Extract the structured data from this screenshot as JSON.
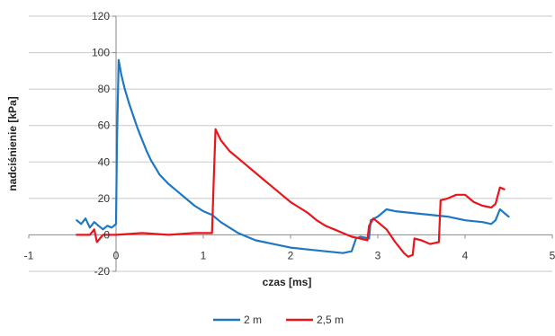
{
  "chart_data": {
    "type": "line",
    "title": "",
    "xlabel": "czas [ms]",
    "ylabel": "nadciśnienie [kPa]",
    "xlim": [
      -1,
      5
    ],
    "ylim": [
      -20,
      120
    ],
    "x_ticks": [
      -1,
      0,
      1,
      2,
      3,
      4,
      5
    ],
    "y_ticks": [
      -20,
      0,
      20,
      40,
      60,
      80,
      100,
      120
    ],
    "x_tick_labels": [
      "-1",
      "0",
      "1",
      "2",
      "3",
      "4",
      "5"
    ],
    "y_tick_labels": [
      "-20",
      "0",
      "20",
      "40",
      "60",
      "80",
      "100",
      "120"
    ],
    "grid": true,
    "legend_position": "bottom",
    "series": [
      {
        "name": "2 m",
        "color": "#1f77c4",
        "points": [
          [
            -0.45,
            8
          ],
          [
            -0.4,
            6
          ],
          [
            -0.35,
            9
          ],
          [
            -0.3,
            4
          ],
          [
            -0.25,
            7
          ],
          [
            -0.2,
            5
          ],
          [
            -0.15,
            3
          ],
          [
            -0.1,
            5
          ],
          [
            -0.05,
            4
          ],
          [
            0.0,
            6
          ],
          [
            0.01,
            50
          ],
          [
            0.03,
            96
          ],
          [
            0.06,
            88
          ],
          [
            0.1,
            80
          ],
          [
            0.15,
            72
          ],
          [
            0.2,
            65
          ],
          [
            0.25,
            58
          ],
          [
            0.3,
            52
          ],
          [
            0.35,
            46
          ],
          [
            0.4,
            41
          ],
          [
            0.45,
            37
          ],
          [
            0.5,
            33
          ],
          [
            0.6,
            28
          ],
          [
            0.7,
            24
          ],
          [
            0.8,
            20
          ],
          [
            0.9,
            16
          ],
          [
            1.0,
            13
          ],
          [
            1.1,
            11
          ],
          [
            1.2,
            7
          ],
          [
            1.3,
            4
          ],
          [
            1.4,
            1
          ],
          [
            1.5,
            -1
          ],
          [
            1.6,
            -3
          ],
          [
            1.7,
            -4
          ],
          [
            1.8,
            -5
          ],
          [
            1.9,
            -6
          ],
          [
            2.0,
            -7
          ],
          [
            2.2,
            -8
          ],
          [
            2.4,
            -9
          ],
          [
            2.6,
            -10
          ],
          [
            2.7,
            -9
          ],
          [
            2.75,
            -2
          ],
          [
            2.8,
            -1
          ],
          [
            2.9,
            -2
          ],
          [
            2.92,
            8
          ],
          [
            3.0,
            10
          ],
          [
            3.05,
            12
          ],
          [
            3.1,
            14
          ],
          [
            3.2,
            13
          ],
          [
            3.4,
            12
          ],
          [
            3.6,
            11
          ],
          [
            3.8,
            10
          ],
          [
            4.0,
            8
          ],
          [
            4.2,
            7
          ],
          [
            4.3,
            6
          ],
          [
            4.35,
            8
          ],
          [
            4.4,
            14
          ],
          [
            4.45,
            12
          ],
          [
            4.5,
            10
          ]
        ]
      },
      {
        "name": "2,5 m",
        "color": "#e8151b",
        "points": [
          [
            -0.45,
            0
          ],
          [
            -0.3,
            0
          ],
          [
            -0.25,
            3
          ],
          [
            -0.22,
            -4
          ],
          [
            -0.15,
            0
          ],
          [
            0.0,
            0
          ],
          [
            0.3,
            1
          ],
          [
            0.6,
            0
          ],
          [
            0.9,
            1
          ],
          [
            1.1,
            1
          ],
          [
            1.12,
            30
          ],
          [
            1.14,
            58
          ],
          [
            1.2,
            52
          ],
          [
            1.3,
            46
          ],
          [
            1.4,
            42
          ],
          [
            1.5,
            38
          ],
          [
            1.6,
            34
          ],
          [
            1.7,
            30
          ],
          [
            1.8,
            26
          ],
          [
            1.9,
            22
          ],
          [
            2.0,
            18
          ],
          [
            2.1,
            15
          ],
          [
            2.2,
            12
          ],
          [
            2.3,
            8
          ],
          [
            2.4,
            5
          ],
          [
            2.5,
            3
          ],
          [
            2.6,
            1
          ],
          [
            2.7,
            -1
          ],
          [
            2.8,
            -2
          ],
          [
            2.88,
            -3
          ],
          [
            2.9,
            5
          ],
          [
            2.95,
            9
          ],
          [
            3.0,
            7
          ],
          [
            3.1,
            3
          ],
          [
            3.2,
            -4
          ],
          [
            3.3,
            -10
          ],
          [
            3.35,
            -12
          ],
          [
            3.4,
            -11
          ],
          [
            3.42,
            -2
          ],
          [
            3.5,
            -3
          ],
          [
            3.6,
            -5
          ],
          [
            3.7,
            -4
          ],
          [
            3.72,
            19
          ],
          [
            3.8,
            20
          ],
          [
            3.9,
            22
          ],
          [
            4.0,
            22
          ],
          [
            4.1,
            18
          ],
          [
            4.2,
            16
          ],
          [
            4.3,
            15
          ],
          [
            4.35,
            17
          ],
          [
            4.4,
            26
          ],
          [
            4.45,
            25
          ]
        ]
      }
    ]
  }
}
